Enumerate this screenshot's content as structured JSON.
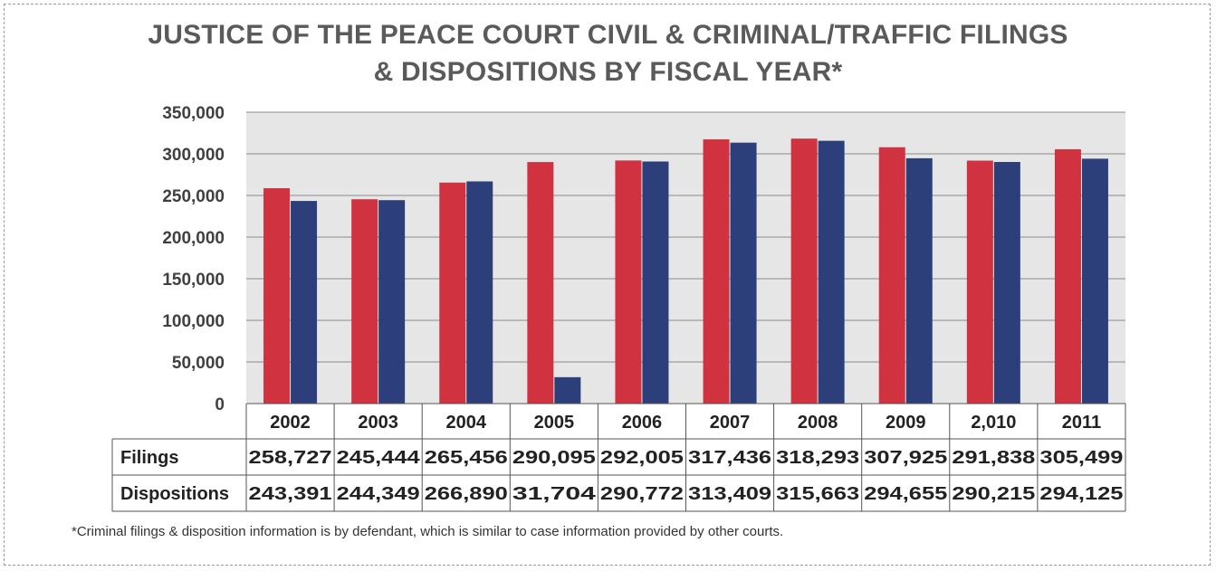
{
  "title_line1": "JUSTICE OF THE PEACE COURT CIVIL & CRIMINAL/TRAFFIC FILINGS",
  "title_line2": "& DISPOSITIONS BY FISCAL YEAR*",
  "footnote": "*Criminal filings & disposition information is by defendant, which is similar to case information provided by other courts.",
  "colors": {
    "filings": "#d0323f",
    "dispositions": "#2c3f7a",
    "plot_bg": "#e6e6e6",
    "axis_text": "#404040"
  },
  "chart_data": {
    "type": "bar",
    "categories": [
      "2002",
      "2003",
      "2004",
      "2005",
      "2006",
      "2007",
      "2008",
      "2009",
      "2,010",
      "2011"
    ],
    "series": [
      {
        "name": "Filings",
        "values": [
          258727,
          245444,
          265456,
          290095,
          292005,
          317436,
          318293,
          307925,
          291838,
          305499
        ],
        "labels": [
          "258,727",
          "245,444",
          "265,456",
          "290,095",
          "292,005",
          "317,436",
          "318,293",
          "307,925",
          "291,838",
          "305,499"
        ]
      },
      {
        "name": "Dispositions",
        "values": [
          243391,
          244349,
          266890,
          31704,
          290772,
          313409,
          315663,
          294655,
          290215,
          294125
        ],
        "labels": [
          "243,391",
          "244,349",
          "266,890",
          "31,704",
          "290,772",
          "313,409",
          "315,663",
          "294,655",
          "290,215",
          "294,125"
        ]
      }
    ],
    "yticks": [
      "0",
      "50,000",
      "100,000",
      "150,000",
      "200,000",
      "250,000",
      "300,000",
      "350,000"
    ],
    "ylim": [
      0,
      350000
    ],
    "grid": true,
    "legend": "data table below chart"
  }
}
